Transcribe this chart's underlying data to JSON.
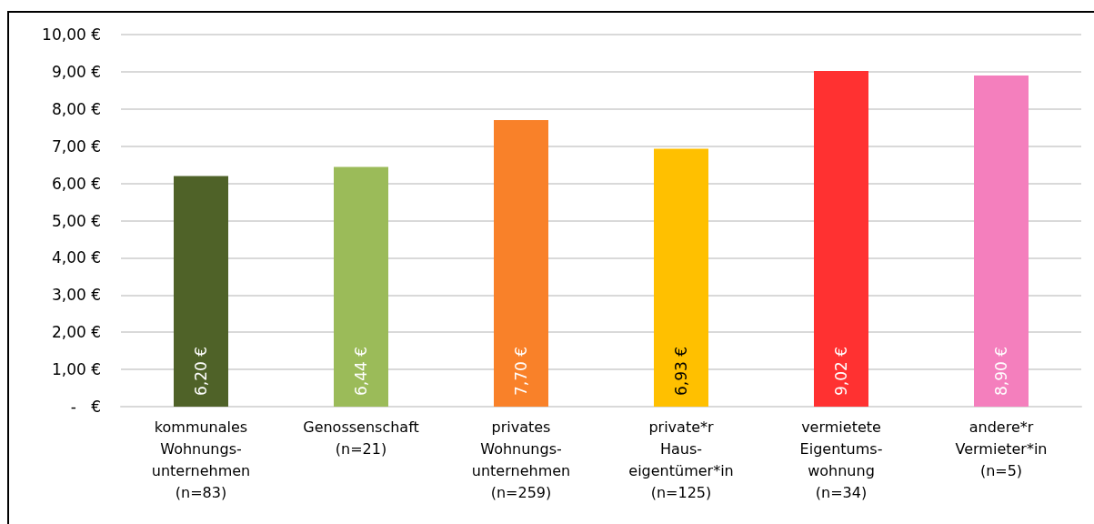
{
  "chart_data": {
    "type": "bar",
    "categories": [
      "kommunales\nWohnungs-\nunternehmen\n(n=83)",
      "Genossenschaft\n(n=21)",
      "privates\nWohnungs-\nunternehmen\n(n=259)",
      "private*r\nHaus-\neigentümer*in\n(n=125)",
      "vermietete\nEigentums-\nwohnung\n(n=34)",
      "andere*r\nVermieter*in\n(n=5)"
    ],
    "values": [
      6.2,
      6.44,
      7.7,
      6.93,
      9.02,
      8.9
    ],
    "value_labels": [
      "6,20 €",
      "6,44 €",
      "7,70 €",
      "6,93 €",
      "9,02 €",
      "8,90 €"
    ],
    "colors": [
      "#4f6228",
      "#9bbb59",
      "#f98129",
      "#ffc000",
      "#ff3131",
      "#f47fbd"
    ],
    "ylim": [
      0,
      10
    ],
    "yticks": [
      {
        "value": 0,
        "label": "-   €"
      },
      {
        "value": 1,
        "label": "1,00 €"
      },
      {
        "value": 2,
        "label": "2,00 €"
      },
      {
        "value": 3,
        "label": "3,00 €"
      },
      {
        "value": 4,
        "label": "4,00 €"
      },
      {
        "value": 5,
        "label": "5,00 €"
      },
      {
        "value": 6,
        "label": "6,00 €"
      },
      {
        "value": 7,
        "label": "7,00 €"
      },
      {
        "value": 8,
        "label": "8,00 €"
      },
      {
        "value": 9,
        "label": "9,00 €"
      },
      {
        "value": 10,
        "label": "10,00 €"
      }
    ],
    "grid": "y"
  }
}
